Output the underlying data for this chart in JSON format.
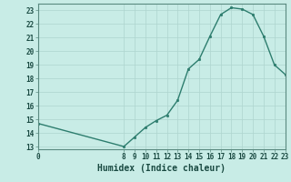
{
  "x": [
    0,
    8,
    9,
    10,
    11,
    12,
    13,
    14,
    15,
    16,
    17,
    18,
    19,
    20,
    21,
    22,
    23
  ],
  "y": [
    14.7,
    13.0,
    13.7,
    14.4,
    14.9,
    15.3,
    16.4,
    18.7,
    19.4,
    21.1,
    22.7,
    23.2,
    23.1,
    22.7,
    21.1,
    19.0,
    18.3
  ],
  "xlabel": "Humidex (Indice chaleur)",
  "xlim": [
    0,
    23
  ],
  "ylim": [
    12.8,
    23.5
  ],
  "yticks": [
    13,
    14,
    15,
    16,
    17,
    18,
    19,
    20,
    21,
    22,
    23
  ],
  "xticks": [
    0,
    8,
    9,
    10,
    11,
    12,
    13,
    14,
    15,
    16,
    17,
    18,
    19,
    20,
    21,
    22,
    23
  ],
  "line_color": "#2d7d6e",
  "marker_color": "#2d7d6e",
  "bg_color": "#c8ece6",
  "grid_color": "#aed4ce",
  "axis_color": "#5a8a80",
  "tick_color": "#1a4a42",
  "label_fontsize": 5.5,
  "xlabel_fontsize": 7
}
